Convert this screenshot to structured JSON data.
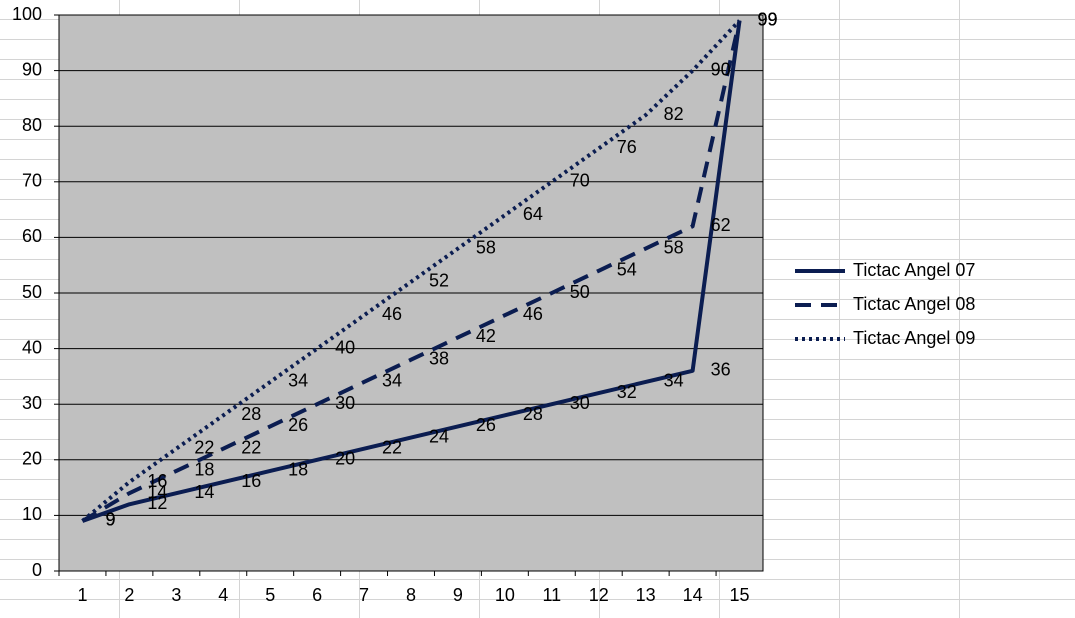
{
  "chart_data": {
    "type": "line",
    "categories": [
      1,
      2,
      3,
      4,
      5,
      6,
      7,
      8,
      9,
      10,
      11,
      12,
      13,
      14,
      15
    ],
    "series": [
      {
        "name": "Tictac Angel 07",
        "color": "#0b1d51",
        "dash": "solid",
        "values": [
          9,
          12,
          14,
          16,
          18,
          20,
          22,
          24,
          26,
          28,
          30,
          32,
          34,
          36,
          99
        ]
      },
      {
        "name": "Tictac Angel 08",
        "color": "#0b1d51",
        "dash": "dashed",
        "values": [
          9,
          14,
          18,
          22,
          26,
          30,
          34,
          38,
          42,
          46,
          50,
          54,
          58,
          62,
          99
        ]
      },
      {
        "name": "Tictac Angel 09",
        "color": "#0b1d51",
        "dash": "dotted",
        "values": [
          9,
          16,
          22,
          28,
          34,
          40,
          46,
          52,
          58,
          64,
          70,
          76,
          82,
          90,
          99
        ]
      }
    ],
    "ylim": [
      0,
      100
    ],
    "yticks": [
      0,
      10,
      20,
      30,
      40,
      50,
      60,
      70,
      80,
      90,
      100
    ],
    "grid": true,
    "legend": "right",
    "plot_background": "#c0c0c0"
  }
}
